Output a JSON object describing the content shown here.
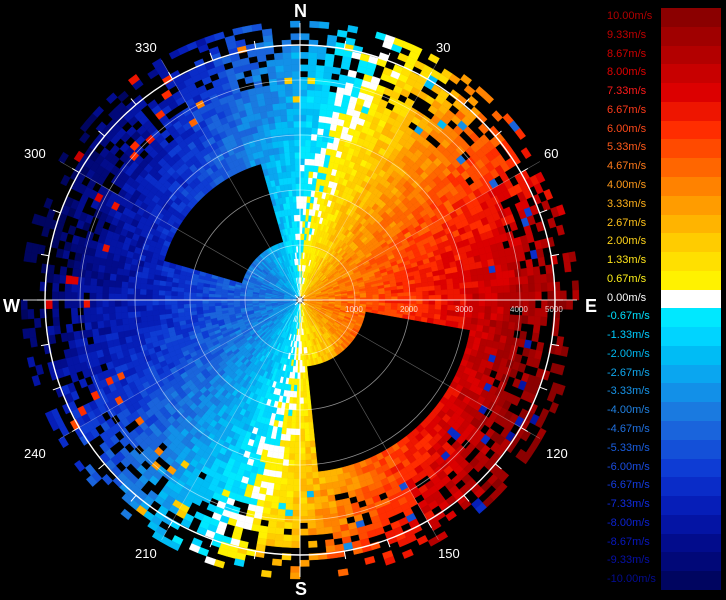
{
  "compass": {
    "north": "N",
    "south": "S",
    "east": "E",
    "west": "W"
  },
  "bearings": [
    "30",
    "60",
    "120",
    "150",
    "210",
    "240",
    "300",
    "330"
  ],
  "range_labels": [
    "1000",
    "2000",
    "3000",
    "4000",
    "5000"
  ],
  "legend": [
    {
      "label": "10.00m/s",
      "color": "#8b0000",
      "text": "#b00000"
    },
    {
      "label": "9.33m/s",
      "color": "#a00000",
      "text": "#c00000"
    },
    {
      "label": "8.67m/s",
      "color": "#b30000",
      "text": "#d00000"
    },
    {
      "label": "8.00m/s",
      "color": "#c80000",
      "text": "#e00000"
    },
    {
      "label": "7.33m/s",
      "color": "#dc0000",
      "text": "#ff1a1a"
    },
    {
      "label": "6.67m/s",
      "color": "#ee1500",
      "text": "#ff3a1a"
    },
    {
      "label": "6.00m/s",
      "color": "#ff2d00",
      "text": "#ff4a1a"
    },
    {
      "label": "5.33m/s",
      "color": "#ff4a00",
      "text": "#ff5a1a"
    },
    {
      "label": "4.67m/s",
      "color": "#ff6600",
      "text": "#ff7a1a"
    },
    {
      "label": "4.00m/s",
      "color": "#ff8200",
      "text": "#ff9a1a"
    },
    {
      "label": "3.33m/s",
      "color": "#ff9c00",
      "text": "#ffb01a"
    },
    {
      "label": "2.67m/s",
      "color": "#ffb400",
      "text": "#ffc21a"
    },
    {
      "label": "2.00m/s",
      "color": "#ffcc00",
      "text": "#ffd41a"
    },
    {
      "label": "1.33m/s",
      "color": "#ffe000",
      "text": "#ffe41a"
    },
    {
      "label": "0.67m/s",
      "color": "#fff200",
      "text": "#fff21a"
    },
    {
      "label": "0.00m/s",
      "color": "#ffffff",
      "text": "#ffffff"
    },
    {
      "label": "-0.67m/s",
      "color": "#00e8ff",
      "text": "#00e0ff"
    },
    {
      "label": "-1.33m/s",
      "color": "#00d4ff",
      "text": "#00ccff"
    },
    {
      "label": "-2.00m/s",
      "color": "#00bcf5",
      "text": "#00b8f0"
    },
    {
      "label": "-2.67m/s",
      "color": "#0aa6f0",
      "text": "#10a8ee"
    },
    {
      "label": "-3.33m/s",
      "color": "#1290e8",
      "text": "#1894e8"
    },
    {
      "label": "-4.00m/s",
      "color": "#1a7ae0",
      "text": "#2080e0"
    },
    {
      "label": "-4.67m/s",
      "color": "#1a64dc",
      "text": "#2070e0"
    },
    {
      "label": "-5.33m/s",
      "color": "#1450d8",
      "text": "#1a5ee0"
    },
    {
      "label": "-6.00m/s",
      "color": "#0e3cd4",
      "text": "#1a4ce0"
    },
    {
      "label": "-6.67m/s",
      "color": "#0a2cc8",
      "text": "#143ce0"
    },
    {
      "label": "-7.33m/s",
      "color": "#061eb8",
      "text": "#102ce0"
    },
    {
      "label": "-8.00m/s",
      "color": "#0414a4",
      "text": "#0c22d0"
    },
    {
      "label": "-8.67m/s",
      "color": "#020c8c",
      "text": "#0818c0"
    },
    {
      "label": "-9.33m/s",
      "color": "#010878",
      "text": "#0610a8"
    },
    {
      "label": "-10.00m/s",
      "color": "#000560",
      "text": "#040c90"
    }
  ]
}
